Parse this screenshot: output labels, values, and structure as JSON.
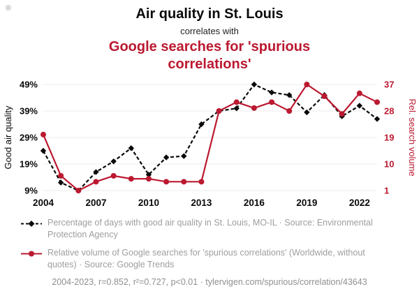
{
  "watermark": "®",
  "header": {
    "title": "Air quality in St. Louis",
    "subtitle": "correlates with",
    "title2": "Google searches for 'spurious correlations'"
  },
  "colors": {
    "accent_red": "#bb1930",
    "series_black": "#0a0a0a",
    "legend_text": "#9e9e9e",
    "footer_text": "#8f8f8f",
    "grid": "#ececec"
  },
  "chart_data": {
    "type": "line",
    "x": [
      2004,
      2005,
      2006,
      2007,
      2008,
      2009,
      2010,
      2011,
      2012,
      2013,
      2014,
      2015,
      2016,
      2017,
      2018,
      2019,
      2020,
      2021,
      2022,
      2023
    ],
    "x_ticks": [
      2004,
      2007,
      2010,
      2013,
      2016,
      2019,
      2022
    ],
    "left_axis": {
      "label": "Good air quality",
      "ticks": [
        9,
        19,
        29,
        39,
        49
      ],
      "suffix": "%",
      "min": 9,
      "max": 49
    },
    "right_axis": {
      "label": "Rel. search volume",
      "ticks": [
        1,
        10,
        19,
        28,
        37
      ],
      "suffix": "",
      "min": 1,
      "max": 37
    },
    "series": [
      {
        "name": "Percentage of days with good air quality in St. Louis, MO-IL",
        "axis": "left",
        "color": "#0a0a0a",
        "marker": "diamond",
        "dash": true,
        "values": [
          24,
          12,
          9,
          16,
          20,
          25,
          15,
          21.5,
          22,
          34,
          39,
          40,
          49,
          46,
          45,
          38.5,
          45,
          37,
          41,
          36
        ]
      },
      {
        "name": "Relative volume of Google searches for 'spurious correlations'",
        "axis": "right",
        "color": "#bb1930",
        "marker": "circle",
        "dash": false,
        "values": [
          20,
          6,
          1,
          4,
          6,
          5,
          5,
          4,
          4,
          4,
          28,
          31,
          29,
          31,
          28,
          37,
          33,
          27,
          34,
          31
        ]
      }
    ]
  },
  "legend": {
    "items": [
      {
        "label": "Percentage of days with good air quality in St. Louis, MO-IL · Source: Environmental Protection Agency"
      },
      {
        "label": "Relative volume of Google searches for 'spurious correlations' (Worldwide, without quotes) · Source: Google Trends"
      }
    ]
  },
  "footer": "2004-2023, r=0.852, r²=0.727, p<0.01 · tylervigen.com/spurious/correlation/43643"
}
